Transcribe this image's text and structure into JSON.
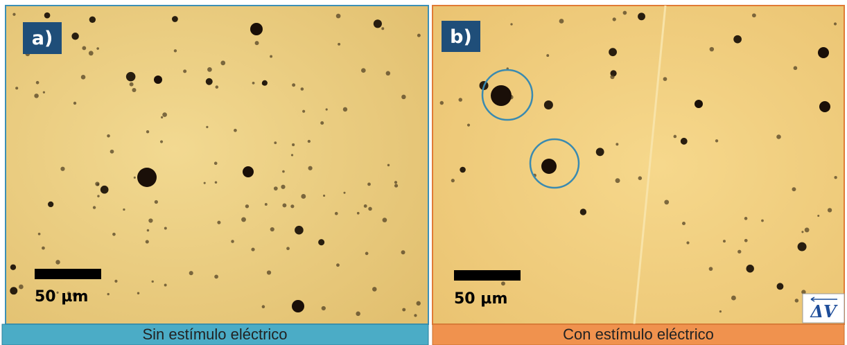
{
  "panels": [
    {
      "label": "a)",
      "scale_bar": "50 µm",
      "caption": "Sin estímulo eléctrico"
    },
    {
      "label": "b)",
      "scale_bar": "50 µm",
      "caption": "Con estímulo eléctrico",
      "field_label": "ΔV"
    }
  ]
}
